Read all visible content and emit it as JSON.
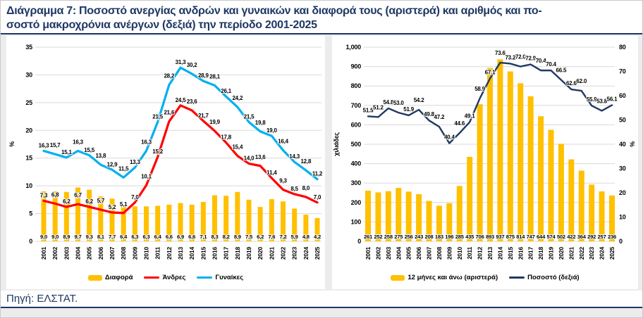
{
  "title": {
    "line1": "Διάγραμμα 7: Ποσοστό ανεργίας ανδρών και γυναικών και διαφορά τους (αριστερά) και αριθμός και πο-",
    "line2": "σοστό μακροχρόνια ανέργων (δεξιά) την περίοδο 2001-2025"
  },
  "source": "Πηγή: ΕΛΣΤΑΤ.",
  "colors": {
    "accent_navy": "#1F3864",
    "bar_yellow": "#FFC000",
    "men_red": "#FF0000",
    "women_blue": "#00B0F0",
    "gridline": "#D9D9D9",
    "band_gray": "#ECECEC"
  },
  "chart_data": [
    {
      "type": "combo-bar-line",
      "ylabel_left": "%",
      "ylim_left": [
        0,
        35
      ],
      "yticks_left": [
        0,
        5,
        10,
        15,
        20,
        25,
        30,
        35
      ],
      "grid": true,
      "legend_position": "bottom",
      "categories": [
        "2001",
        "2002",
        "2003",
        "2004",
        "2005",
        "2006",
        "2007",
        "2008",
        "2009",
        "2010",
        "2011",
        "2012",
        "2013",
        "2014",
        "2015",
        "2016",
        "2017",
        "2018",
        "2019",
        "2020",
        "2021",
        "2022",
        "2023",
        "2024",
        "2025"
      ],
      "series": [
        {
          "name": "Διαφορά",
          "type": "bar",
          "axis": "left",
          "color": "#FFC000",
          "decimals": 1,
          "decimal_separator": ",",
          "values": [
            9.0,
            9.0,
            8.9,
            9.7,
            9.3,
            8.1,
            7.7,
            6.4,
            6.3,
            6.3,
            6.4,
            6.6,
            6.9,
            6.6,
            7.1,
            8.3,
            8.2,
            8.9,
            7.5,
            6.2,
            7.6,
            7.2,
            5.9,
            4.8,
            4.2
          ]
        },
        {
          "name": "Άνδρες",
          "type": "line",
          "axis": "left",
          "color": "#FF0000",
          "decimals": 1,
          "decimal_separator": ",",
          "values": [
            7.3,
            6.8,
            6.2,
            6.7,
            6.2,
            5.7,
            5.2,
            5.1,
            7.0,
            10.1,
            15.2,
            21.6,
            24.5,
            23.6,
            21.7,
            19.9,
            17.8,
            15.4,
            14.0,
            13.6,
            11.4,
            9.3,
            8.5,
            8.0,
            7.0
          ]
        },
        {
          "name": "Γυναίκες",
          "type": "line",
          "axis": "left",
          "color": "#00B0F0",
          "decimals": 1,
          "decimal_separator": ",",
          "values": [
            16.3,
            15.7,
            15.1,
            16.3,
            15.5,
            13.8,
            12.9,
            11.5,
            13.3,
            16.3,
            21.5,
            28.2,
            31.3,
            30.2,
            28.9,
            28.1,
            26.1,
            24.2,
            21.5,
            19.8,
            19.0,
            16.4,
            14.3,
            12.8,
            11.2
          ]
        }
      ]
    },
    {
      "type": "combo-bar-line",
      "ylabel_left": "χιλιάδες",
      "ylabel_right": "%",
      "ylim_left": [
        0,
        1000
      ],
      "ylim_right": [
        0,
        80
      ],
      "yticks_left": [
        "0",
        "100",
        "200",
        "300",
        "400",
        "500",
        "600",
        "700",
        "800",
        "900",
        "1,000"
      ],
      "yticks_right": [
        0,
        10,
        20,
        30,
        40,
        50,
        60,
        70,
        80
      ],
      "grid": true,
      "legend_position": "bottom",
      "categories": [
        "2001",
        "2002",
        "2003",
        "2004",
        "2005",
        "2006",
        "2007",
        "2008",
        "2009",
        "2010",
        "2011",
        "2012",
        "2013",
        "2014",
        "2015",
        "2016",
        "2017",
        "2018",
        "2019",
        "2020",
        "2021",
        "2022",
        "2023",
        "2024",
        "2025"
      ],
      "series": [
        {
          "name": "12 μήνες και άνω (αριστερά)",
          "type": "bar",
          "axis": "left",
          "color": "#FFC000",
          "decimals": 0,
          "values": [
            261,
            252,
            258,
            275,
            256,
            243,
            208,
            183,
            196,
            285,
            435,
            706,
            893,
            937,
            875,
            814,
            747,
            644,
            574,
            502,
            422,
            364,
            292,
            257,
            236
          ]
        },
        {
          "name": "Ποσοστό (δεξιά)",
          "type": "line",
          "axis": "right",
          "color": "#1F3864",
          "decimals": 1,
          "decimal_separator": ".",
          "values": [
            51.5,
            51.2,
            54.8,
            53.0,
            51.9,
            54.2,
            49.8,
            47.2,
            40.4,
            44.6,
            49.1,
            58.9,
            67.1,
            73.6,
            73.2,
            72.0,
            72.9,
            70.4,
            70.4,
            66.5,
            62.6,
            62.0,
            55.9,
            53.8,
            56.1
          ]
        }
      ]
    }
  ]
}
